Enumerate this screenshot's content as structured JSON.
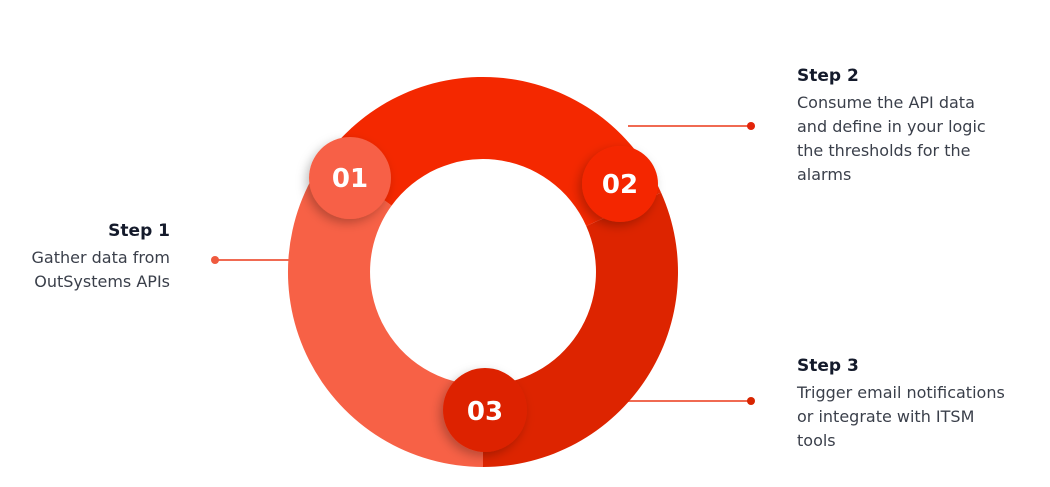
{
  "colors": {
    "segment_1": "#f76146",
    "segment_2": "#f42800",
    "segment_3": "#dd2400",
    "connector": "#f06a52",
    "title_text": "#141a2b",
    "body_text": "#3a3f4a"
  },
  "steps": [
    {
      "number": "01",
      "title": "Step 1",
      "description": "Gather data from\nOutSystems APIs"
    },
    {
      "number": "02",
      "title": "Step 2",
      "description": "Consume the API data\nand define in your logic\nthe thresholds for the\nalarms"
    },
    {
      "number": "03",
      "title": "Step 3",
      "description": "Trigger email notifications\nor integrate with ITSM\ntools"
    }
  ]
}
